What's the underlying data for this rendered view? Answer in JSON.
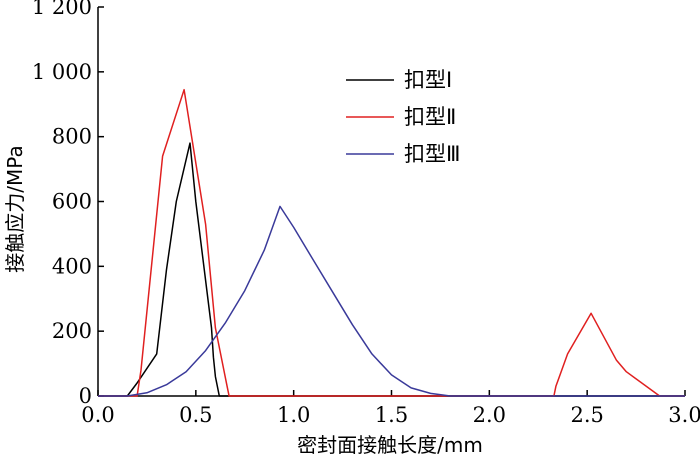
{
  "chart_data": {
    "type": "line",
    "title": "",
    "xlabel": "密封面接触长度/mm",
    "ylabel": "接触应力/MPa",
    "xlim": [
      0,
      3.0
    ],
    "ylim": [
      0,
      1200
    ],
    "x_ticks": [
      0,
      0.5,
      1.0,
      1.5,
      2.0,
      2.5,
      3.0
    ],
    "x_tick_labels": [
      "0.0",
      "0.5",
      "1.0",
      "1.5",
      "2.0",
      "2.5",
      "3.0"
    ],
    "y_ticks": [
      0,
      200,
      400,
      600,
      800,
      1000,
      1200
    ],
    "y_tick_labels": [
      "0",
      "200",
      "400",
      "600",
      "800",
      "1 000",
      "1 200"
    ],
    "grid": false,
    "legend_position": "top-right",
    "series": [
      {
        "name": "扣型Ⅰ",
        "color": "#000000",
        "x": [
          0.0,
          0.15,
          0.2,
          0.3,
          0.35,
          0.4,
          0.47,
          0.5,
          0.58,
          0.59,
          0.6,
          0.62,
          3.0
        ],
        "y": [
          0,
          0,
          40,
          130,
          390,
          600,
          780,
          600,
          210,
          120,
          60,
          0,
          0
        ]
      },
      {
        "name": "扣型Ⅱ",
        "color": "#e02020",
        "x": [
          0.0,
          0.2,
          0.22,
          0.33,
          0.44,
          0.55,
          0.6,
          0.66,
          0.67,
          2.33,
          2.34,
          2.4,
          2.52,
          2.65,
          2.7,
          2.87,
          3.0
        ],
        "y": [
          0,
          0,
          80,
          740,
          945,
          530,
          210,
          30,
          0,
          0,
          30,
          130,
          255,
          110,
          75,
          0,
          0
        ]
      },
      {
        "name": "扣型Ⅲ",
        "color": "#3a3a9a",
        "x": [
          0.0,
          0.15,
          0.25,
          0.35,
          0.45,
          0.55,
          0.65,
          0.75,
          0.85,
          0.93,
          1.0,
          1.1,
          1.2,
          1.3,
          1.4,
          1.5,
          1.6,
          1.7,
          1.8,
          3.0
        ],
        "y": [
          0,
          0,
          10,
          35,
          75,
          140,
          225,
          325,
          450,
          585,
          520,
          420,
          320,
          220,
          130,
          65,
          25,
          8,
          0,
          0
        ]
      }
    ]
  }
}
